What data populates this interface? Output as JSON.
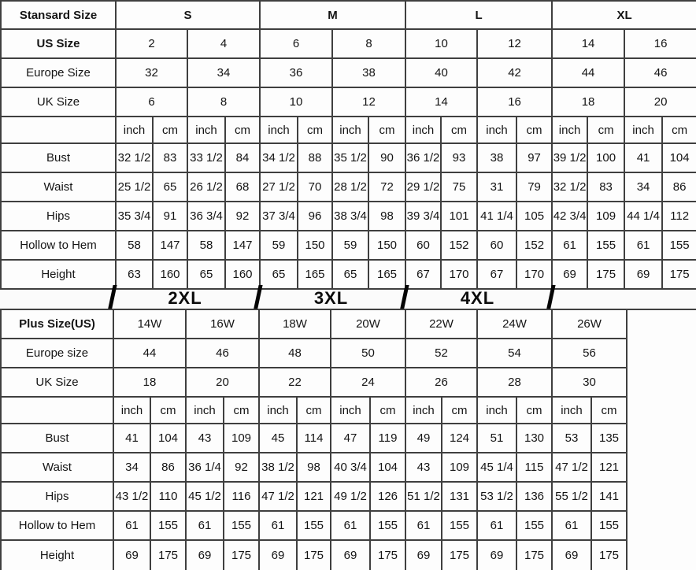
{
  "colors": {
    "grid_line": "#3f3f3f",
    "text": "#141414",
    "cell_background": "#fdfdfd",
    "band_divider": "#050505"
  },
  "standard_table": {
    "corner_label": "Stansard Size",
    "size_groups": [
      "S",
      "M",
      "L",
      "XL"
    ],
    "unit_header": [
      "inch",
      "cm",
      "inch",
      "cm",
      "inch",
      "cm",
      "inch",
      "cm",
      "inch",
      "cm",
      "inch",
      "cm",
      "inch",
      "cm",
      "inch",
      "cm"
    ],
    "rows": [
      {
        "label": "US Size",
        "values": [
          "2",
          "4",
          "6",
          "8",
          "10",
          "12",
          "14",
          "16"
        ]
      },
      {
        "label": "Europe Size",
        "values": [
          "32",
          "34",
          "36",
          "38",
          "40",
          "42",
          "44",
          "46"
        ]
      },
      {
        "label": "UK Size",
        "values": [
          "6",
          "8",
          "10",
          "12",
          "14",
          "16",
          "18",
          "20"
        ]
      },
      {
        "label": "Bust",
        "values": [
          "32 1/2",
          "83",
          "33 1/2",
          "84",
          "34 1/2",
          "88",
          "35 1/2",
          "90",
          "36 1/2",
          "93",
          "38",
          "97",
          "39 1/2",
          "100",
          "41",
          "104"
        ]
      },
      {
        "label": "Waist",
        "values": [
          "25 1/2",
          "65",
          "26 1/2",
          "68",
          "27 1/2",
          "70",
          "28 1/2",
          "72",
          "29 1/2",
          "75",
          "31",
          "79",
          "32 1/2",
          "83",
          "34",
          "86"
        ]
      },
      {
        "label": "Hips",
        "values": [
          "35 3/4",
          "91",
          "36 3/4",
          "92",
          "37 3/4",
          "96",
          "38 3/4",
          "98",
          "39 3/4",
          "101",
          "41 1/4",
          "105",
          "42 3/4",
          "109",
          "44 1/4",
          "112"
        ]
      },
      {
        "label": "Hollow to Hem",
        "values": [
          "58",
          "147",
          "58",
          "147",
          "59",
          "150",
          "59",
          "150",
          "60",
          "152",
          "60",
          "152",
          "61",
          "155",
          "61",
          "155"
        ]
      },
      {
        "label": "Height",
        "values": [
          "63",
          "160",
          "65",
          "160",
          "65",
          "165",
          "65",
          "165",
          "67",
          "170",
          "67",
          "170",
          "69",
          "175",
          "69",
          "175"
        ]
      }
    ]
  },
  "plus_band": [
    "2XL",
    "3XL",
    "4XL"
  ],
  "plus_table": {
    "unit_header": [
      "inch",
      "cm",
      "inch",
      "cm",
      "inch",
      "cm",
      "inch",
      "cm",
      "inch",
      "cm",
      "inch",
      "cm",
      "inch",
      "cm"
    ],
    "rows": [
      {
        "label": "Plus Size(US)",
        "values": [
          "14W",
          "16W",
          "18W",
          "20W",
          "22W",
          "24W",
          "26W"
        ]
      },
      {
        "label": "Europe size",
        "values": [
          "44",
          "46",
          "48",
          "50",
          "52",
          "54",
          "56"
        ]
      },
      {
        "label": "UK Size",
        "values": [
          "18",
          "20",
          "22",
          "24",
          "26",
          "28",
          "30"
        ]
      },
      {
        "label": "Bust",
        "values": [
          "41",
          "104",
          "43",
          "109",
          "45",
          "114",
          "47",
          "119",
          "49",
          "124",
          "51",
          "130",
          "53",
          "135"
        ]
      },
      {
        "label": "Waist",
        "values": [
          "34",
          "86",
          "36 1/4",
          "92",
          "38 1/2",
          "98",
          "40 3/4",
          "104",
          "43",
          "109",
          "45 1/4",
          "115",
          "47 1/2",
          "121"
        ]
      },
      {
        "label": "Hips",
        "values": [
          "43 1/2",
          "110",
          "45 1/2",
          "116",
          "47 1/2",
          "121",
          "49 1/2",
          "126",
          "51 1/2",
          "131",
          "53 1/2",
          "136",
          "55 1/2",
          "141"
        ]
      },
      {
        "label": "Hollow to Hem",
        "values": [
          "61",
          "155",
          "61",
          "155",
          "61",
          "155",
          "61",
          "155",
          "61",
          "155",
          "61",
          "155",
          "61",
          "155"
        ]
      },
      {
        "label": "Height",
        "values": [
          "69",
          "175",
          "69",
          "175",
          "69",
          "175",
          "69",
          "175",
          "69",
          "175",
          "69",
          "175",
          "69",
          "175"
        ]
      }
    ]
  }
}
